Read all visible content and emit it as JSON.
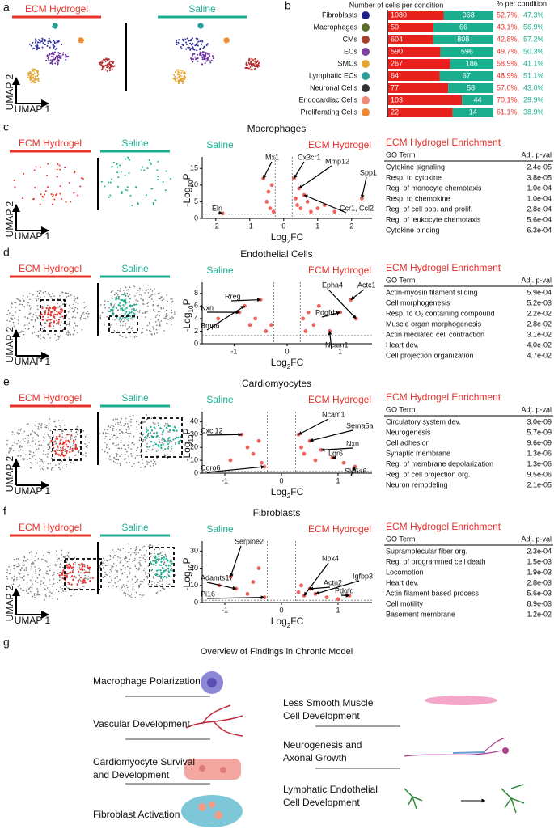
{
  "panels": {
    "a": {
      "letter": "a",
      "groups": [
        "ECM Hydrogel",
        "Saline"
      ],
      "axis_labels": [
        "UMAP 2",
        "UMAP 1"
      ]
    },
    "b": {
      "letter": "b"
    },
    "c": {
      "letter": "c",
      "title": "Macrophages",
      "groups": [
        "ECM Hydrogel",
        "Saline"
      ],
      "axis_labels": [
        "UMAP 2",
        "UMAP 1"
      ],
      "go": {
        "title": "ECM Hydrogel Enrichment",
        "header": [
          "GO Term",
          "Adj. p-val"
        ],
        "rows": [
          [
            "Cytokine signaling",
            "2.4e-05"
          ],
          [
            "Resp. to cytokine",
            "3.8e-05"
          ],
          [
            "Reg. of monocyte chemotaxis",
            "1.0e-04"
          ],
          [
            "Resp. to chemokine",
            "1.0e-04"
          ],
          [
            "Reg. of cell pop. and prolif.",
            "2.8e-04"
          ],
          [
            "Reg. of leukocyte chemotaxis",
            "5.6e-04"
          ],
          [
            "Cytokine binding",
            "6.3e-04"
          ]
        ]
      }
    },
    "d": {
      "letter": "d",
      "title": "Endothelial Cells",
      "groups": [
        "ECM Hydrogel",
        "Saline"
      ],
      "axis_labels": [
        "UMAP 2",
        "UMAP 1"
      ],
      "go": {
        "title": "ECM Hydrogel Enrichment",
        "header": [
          "GO Term",
          "Adj. p-val"
        ],
        "rows": [
          [
            "Actin-myosin filament sliding",
            "5.9e-04"
          ],
          [
            "Cell morphogenesis",
            "5.2e-03"
          ],
          [
            "Resp. to O₂ containing compound",
            "2.2e-02"
          ],
          [
            "Muscle organ morphogenesis",
            "2.8e-02"
          ],
          [
            "Actin mediated cell contraction",
            "3.1e-02"
          ],
          [
            "Heart dev.",
            "4.0e-02"
          ],
          [
            "Cell projection organization",
            "4.7e-02"
          ]
        ]
      }
    },
    "e": {
      "letter": "e",
      "title": "Cardiomyocytes",
      "groups": [
        "ECM Hydrogel",
        "Saline"
      ],
      "axis_labels": [
        "UMAP 2",
        "UMAP 1"
      ],
      "go": {
        "title": "ECM Hydrogel Enrichment",
        "header": [
          "GO Term",
          "Adj. p-val"
        ],
        "rows": [
          [
            "Circulatory system dev.",
            "3.0e-09"
          ],
          [
            "Neurogenesis",
            "5.7e-09"
          ],
          [
            "Cell adhesion",
            "9.6e-09"
          ],
          [
            "Synaptic membrane",
            "1.3e-06"
          ],
          [
            "Reg. of membrane depolarization",
            "1.3e-06"
          ],
          [
            "Reg. of cell projection org.",
            "9.5e-06"
          ],
          [
            "Neuron remodeling",
            "2.1e-05"
          ]
        ]
      }
    },
    "f": {
      "letter": "f",
      "title": "Fibroblasts",
      "groups": [
        "ECM Hydrogel",
        "Saline"
      ],
      "axis_labels": [
        "UMAP 2",
        "UMAP 1"
      ],
      "go": {
        "title": "ECM Hydrogel Enrichment",
        "header": [
          "GO Term",
          "Adj. p-val"
        ],
        "rows": [
          [
            "Supramolecular fiber org.",
            "2.3e-04"
          ],
          [
            "Reg. of programmed cell death",
            "1.5e-03"
          ],
          [
            "Locomotion",
            "1.9e-03"
          ],
          [
            "Heart dev.",
            "2.8e-03"
          ],
          [
            "Actin filament based process",
            "5.6e-03"
          ],
          [
            "Cell motility",
            "8.9e-03"
          ],
          [
            "Basement membrane",
            "1.2e-02"
          ]
        ]
      }
    },
    "g": {
      "letter": "g",
      "title": "Overview of Findings in Chronic Model",
      "left": [
        [
          "Macrophage Polarization"
        ],
        [
          "Vascular Development"
        ],
        [
          "Cardiomyocyte Survival",
          "and Development"
        ],
        [
          "Fibroblast Activation"
        ]
      ],
      "right": [
        [
          "Less Smooth Muscle",
          "Cell Development"
        ],
        [
          "Neurogenesis and",
          "Axonal Growth"
        ],
        [
          "Lymphatic Endothelial",
          "Cell Development"
        ]
      ]
    }
  },
  "chart_data": [
    {
      "type": "bar",
      "title": "Number of cells per condition",
      "subtitle": "% per condition",
      "categories": [
        "Fibroblasts",
        "Macrophages",
        "CMs",
        "ECs",
        "SMCs",
        "Lymphatic ECs",
        "Neuronal Cells",
        "Endocardiac Cells",
        "Proliferating Cells"
      ],
      "category_colors": [
        "#1b1f8a",
        "#5b6b2a",
        "#a3402c",
        "#7b3fa0",
        "#e5a630",
        "#2a9d9a",
        "#333333",
        "#f08a78",
        "#f0862e"
      ],
      "series": [
        {
          "color": "#e8211d",
          "values": [
            1080,
            50,
            604,
            590,
            267,
            64,
            77,
            103,
            22
          ],
          "value_labels": [
            "52.7%,",
            "43.1%,",
            "42.8%,",
            "49.7%,",
            "58.9%,",
            "48.9%,",
            "57.0%,",
            "70.1%,",
            "61.1%,"
          ]
        },
        {
          "color": "#1aae8f",
          "values": [
            968,
            66,
            808,
            596,
            186,
            67,
            58,
            44,
            14
          ],
          "value_labels": [
            "47.3%",
            "56.9%",
            "57.2%",
            "50.3%",
            "41.1%",
            "51.1%",
            "43.0%",
            "29.9%",
            "38.9%"
          ]
        }
      ]
    },
    {
      "type": "scatter",
      "group_labels": [
        "Saline",
        "ECM Hydrogel"
      ],
      "ylabel": {
        "pre": "-Log",
        "sub": "10",
        "post": "P"
      },
      "xlabel": {
        "pre": "Log",
        "sub": "2",
        "post": "FC"
      },
      "x": [
        -1.8,
        -0.6,
        -0.5,
        -0.45,
        -0.4,
        -0.35,
        -0.3,
        0.3,
        0.35,
        0.4,
        0.45,
        0.5,
        0.6,
        0.7,
        0.8,
        1.0,
        1.2,
        1.5,
        2.3
      ],
      "y": [
        1.5,
        12,
        5,
        8,
        3,
        10,
        2,
        12,
        6,
        4,
        9,
        3,
        7,
        5,
        2,
        3,
        4,
        2,
        6
      ],
      "xlim": [
        -2.4,
        2.6
      ],
      "ylim": [
        0,
        17
      ],
      "xticks": [
        -2,
        -1,
        0,
        1,
        2
      ],
      "yticks": [
        0,
        5,
        10,
        15
      ],
      "thresholds": {
        "x": [
          -0.25,
          0.25
        ],
        "y": 1.3
      },
      "annotations": [
        "Mx1",
        "Cx3cr1",
        "Mmp12",
        "Spp1",
        "Eln",
        "Ccr1, Ccl2"
      ],
      "color": "#e8312a"
    },
    {
      "type": "scatter",
      "group_labels": [
        "Saline",
        "ECM Hydrogel"
      ],
      "ylabel": {
        "pre": "-Log",
        "sub": "10",
        "post": "P"
      },
      "xlabel": {
        "pre": "Log",
        "sub": "2",
        "post": "FC"
      },
      "x": [
        -1.3,
        -0.9,
        -0.8,
        -0.7,
        -0.6,
        -0.5,
        -0.4,
        -0.3,
        0.3,
        0.35,
        0.4,
        0.5,
        0.6,
        0.8,
        1.0,
        1.2,
        1.3
      ],
      "y": [
        4,
        5,
        6,
        3,
        4,
        7,
        2,
        3,
        4,
        2,
        5,
        3,
        6,
        2,
        5,
        7,
        4
      ],
      "xlim": [
        -1.6,
        1.6
      ],
      "ylim": [
        0,
        9
      ],
      "xticks": [
        -1,
        0,
        1
      ],
      "yticks": [
        0,
        2,
        4,
        6,
        8
      ],
      "thresholds": {
        "x": [
          -0.25,
          0.25
        ],
        "y": 1.3
      },
      "annotations": [
        "Nxn",
        "Rreg",
        "Bmp6",
        "Epha4",
        "Actc1",
        "Pdgfrb",
        "Ncam1"
      ],
      "color": "#e8312a"
    },
    {
      "type": "scatter",
      "group_labels": [
        "Saline",
        "ECM Hydrogel"
      ],
      "ylabel": {
        "pre": "-Log",
        "sub": "10",
        "post": "P"
      },
      "xlabel": {
        "pre": "Log",
        "sub": "2",
        "post": "FC"
      },
      "x": [
        -0.9,
        -0.7,
        -0.6,
        -0.5,
        -0.4,
        -0.35,
        -0.3,
        0.3,
        0.35,
        0.4,
        0.5,
        0.6,
        0.7,
        0.9,
        1.1,
        1.3
      ],
      "y": [
        10,
        30,
        20,
        15,
        25,
        8,
        5,
        30,
        20,
        15,
        25,
        10,
        18,
        12,
        8,
        5
      ],
      "xlim": [
        -1.4,
        1.6
      ],
      "ylim": [
        0,
        44
      ],
      "xticks": [
        -1,
        0,
        1
      ],
      "yticks": [
        0,
        10,
        20,
        30,
        40
      ],
      "thresholds": {
        "x": [
          -0.25,
          0.25
        ],
        "y": 1.3
      },
      "annotations": [
        "Cxcl12",
        "Coro6",
        "Ncam1",
        "Sema5a",
        "Nxn",
        "Lgr6",
        "Slc6a6"
      ],
      "color": "#e8312a"
    },
    {
      "type": "scatter",
      "group_labels": [
        "Saline",
        "ECM Hydrogel"
      ],
      "ylabel": {
        "pre": "-Log",
        "sub": "10",
        "post": "P"
      },
      "xlabel": {
        "pre": "Log",
        "sub": "2",
        "post": "FC"
      },
      "x": [
        -1.1,
        -0.9,
        -0.8,
        -0.6,
        -0.5,
        -0.4,
        -0.3,
        0.3,
        0.35,
        0.4,
        0.5,
        0.6,
        0.8,
        1.0,
        1.2
      ],
      "y": [
        10,
        15,
        8,
        5,
        12,
        20,
        3,
        6,
        10,
        4,
        8,
        5,
        3,
        2,
        4
      ],
      "xlim": [
        -1.4,
        1.6
      ],
      "ylim": [
        0,
        33
      ],
      "xticks": [
        -1,
        0,
        1
      ],
      "yticks": [
        0,
        10,
        20,
        30
      ],
      "thresholds": {
        "x": [
          -0.25,
          0.25
        ],
        "y": 1.3
      },
      "annotations": [
        "Serpine2",
        "Adamts17",
        "Pi16",
        "Nox4",
        "Actn2",
        "Igfbp3",
        "Pdgfd"
      ],
      "color": "#e8312a"
    }
  ]
}
